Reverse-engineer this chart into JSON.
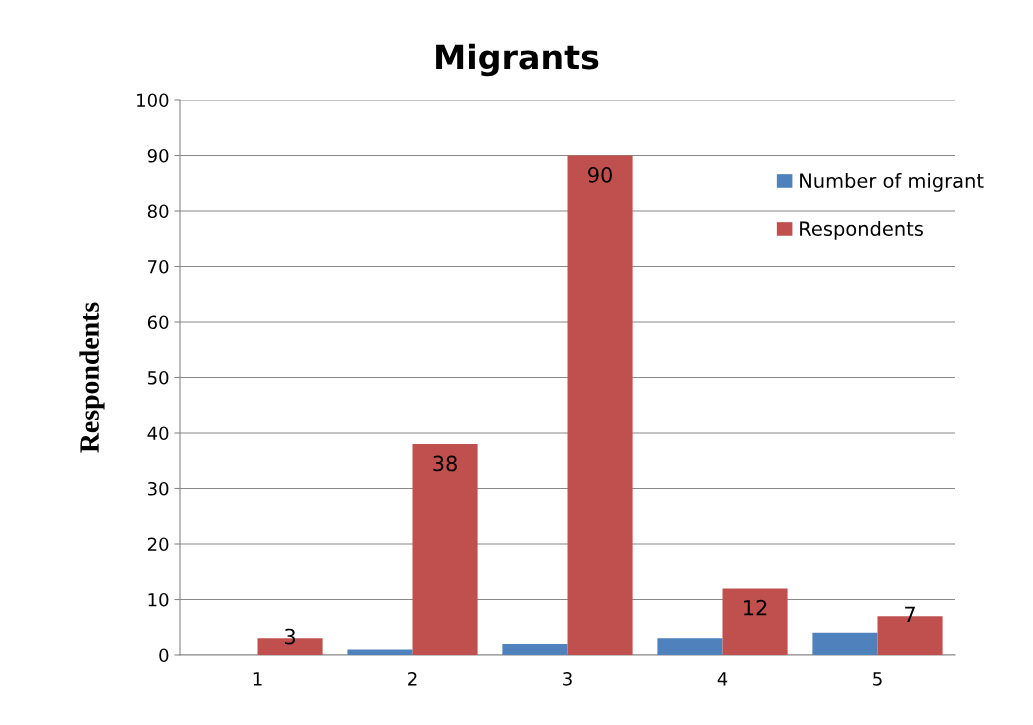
{
  "chart_data": {
    "type": "bar",
    "title": "Migrants",
    "ylabel": "Respondents",
    "categories": [
      "1",
      "2",
      "3",
      "4",
      "5"
    ],
    "series": [
      {
        "name": "Number of migrant",
        "color": "#4f81bd",
        "values": [
          0,
          1,
          2,
          3,
          4
        ]
      },
      {
        "name": "Respondents",
        "color": "#c0504d",
        "values": [
          3,
          38,
          90,
          12,
          7
        ],
        "value_labels": [
          "3",
          "38",
          "90",
          "12",
          "7"
        ]
      }
    ],
    "ylim": [
      0,
      100
    ],
    "yticks": [
      0,
      10,
      20,
      30,
      40,
      50,
      60,
      70,
      80,
      90,
      100
    ],
    "grid": "y",
    "legend": "top right"
  }
}
